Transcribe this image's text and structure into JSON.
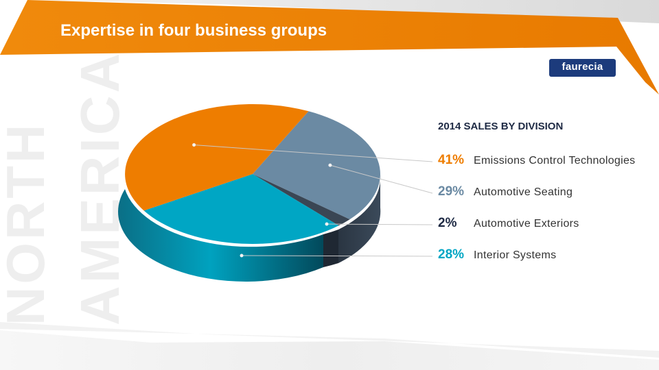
{
  "header": {
    "title": "Expertise in four business groups"
  },
  "logo": {
    "text": "faurecia"
  },
  "region": {
    "line1": "NORTH",
    "line2": "AMERICA"
  },
  "colors": {
    "accent": "#ee7d00",
    "teal": "#00a6c4",
    "slate": "#6b8aa3",
    "dark": "#3a4654",
    "title_text": "#1e2a44"
  },
  "chart_data": {
    "type": "pie",
    "title": "2014 SALES BY DIVISION",
    "unit": "%",
    "slices": [
      {
        "pct_label": "41%",
        "value": 41,
        "name": "Emissions Control Technologies",
        "color": "#ee7d00"
      },
      {
        "pct_label": "29%",
        "value": 29,
        "name": "Automotive Seating",
        "color": "#6b8aa3"
      },
      {
        "pct_label": "2%",
        "value": 2,
        "name": "Automotive Exteriors",
        "color": "#3a4654"
      },
      {
        "pct_label": "28%",
        "value": 28,
        "name": "Interior Systems",
        "color": "#00a6c4"
      }
    ]
  }
}
